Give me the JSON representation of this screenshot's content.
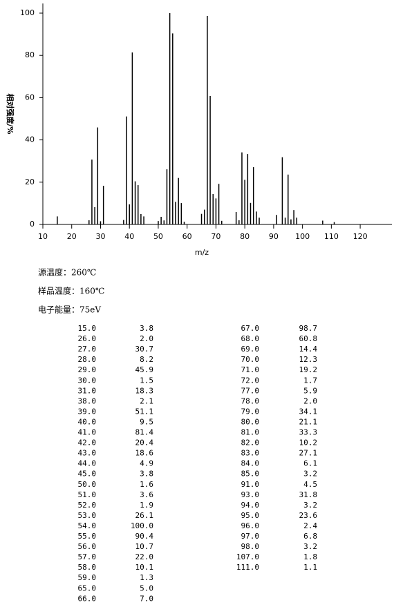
{
  "chart_data": {
    "type": "bar",
    "xlabel": "m/z",
    "ylabel": "相对强度/%",
    "annotations": [
      "源温度：260℃",
      "样品温度：160℃",
      "电子能量：75eV"
    ],
    "x": [
      15,
      26,
      27,
      28,
      29,
      30,
      31,
      38,
      39,
      40,
      41,
      42,
      43,
      44,
      45,
      50,
      51,
      52,
      53,
      54,
      55,
      56,
      57,
      58,
      59,
      65,
      66,
      67,
      68,
      69,
      70,
      71,
      72,
      77,
      78,
      79,
      80,
      81,
      82,
      83,
      84,
      85,
      91,
      93,
      94,
      95,
      96,
      97,
      98,
      107,
      111
    ],
    "x_labels": [
      "15.0",
      "26.0",
      "27.0",
      "28.0",
      "29.0",
      "30.0",
      "31.0",
      "38.0",
      "39.0",
      "40.0",
      "41.0",
      "42.0",
      "43.0",
      "44.0",
      "45.0",
      "50.0",
      "51.0",
      "52.0",
      "53.0",
      "54.0",
      "55.0",
      "56.0",
      "57.0",
      "58.0",
      "59.0",
      "65.0",
      "66.0",
      "67.0",
      "68.0",
      "69.0",
      "70.0",
      "71.0",
      "72.0",
      "77.0",
      "78.0",
      "79.0",
      "80.0",
      "81.0",
      "82.0",
      "83.0",
      "84.0",
      "85.0",
      "91.0",
      "93.0",
      "94.0",
      "95.0",
      "96.0",
      "97.0",
      "98.0",
      "107.0",
      "111.0"
    ],
    "values": [
      3.8,
      2.0,
      30.7,
      8.2,
      45.9,
      1.5,
      18.3,
      2.1,
      51.1,
      9.5,
      81.4,
      20.4,
      18.6,
      4.9,
      3.8,
      1.6,
      3.6,
      1.9,
      26.1,
      100.0,
      90.4,
      10.7,
      22.0,
      10.1,
      1.3,
      5.0,
      7.0,
      98.7,
      60.8,
      14.4,
      12.3,
      19.2,
      1.7,
      5.9,
      2.0,
      34.1,
      21.1,
      33.3,
      10.2,
      27.1,
      6.1,
      3.2,
      4.5,
      31.8,
      3.2,
      23.6,
      2.4,
      6.8,
      3.2,
      1.8,
      1.1
    ],
    "value_labels": [
      "3.8",
      "2.0",
      "30.7",
      "8.2",
      "45.9",
      "1.5",
      "18.3",
      "2.1",
      "51.1",
      "9.5",
      "81.4",
      "20.4",
      "18.6",
      "4.9",
      "3.8",
      "1.6",
      "3.6",
      "1.9",
      "26.1",
      "100.0",
      "90.4",
      "10.7",
      "22.0",
      "10.1",
      "1.3",
      "5.0",
      "7.0",
      "98.7",
      "60.8",
      "14.4",
      "12.3",
      "19.2",
      "1.7",
      "5.9",
      "2.0",
      "34.1",
      "21.1",
      "33.3",
      "10.2",
      "27.1",
      "6.1",
      "3.2",
      "4.5",
      "31.8",
      "3.2",
      "23.6",
      "2.4",
      "6.8",
      "3.2",
      "1.8",
      "1.1"
    ],
    "color": "#000000",
    "xlim": [
      10,
      131
    ],
    "xticks": [
      10,
      20,
      30,
      40,
      50,
      60,
      70,
      80,
      90,
      100,
      110,
      120
    ],
    "ylim": [
      0,
      100
    ],
    "yticks": [
      0,
      20,
      40,
      60,
      80,
      100
    ]
  }
}
